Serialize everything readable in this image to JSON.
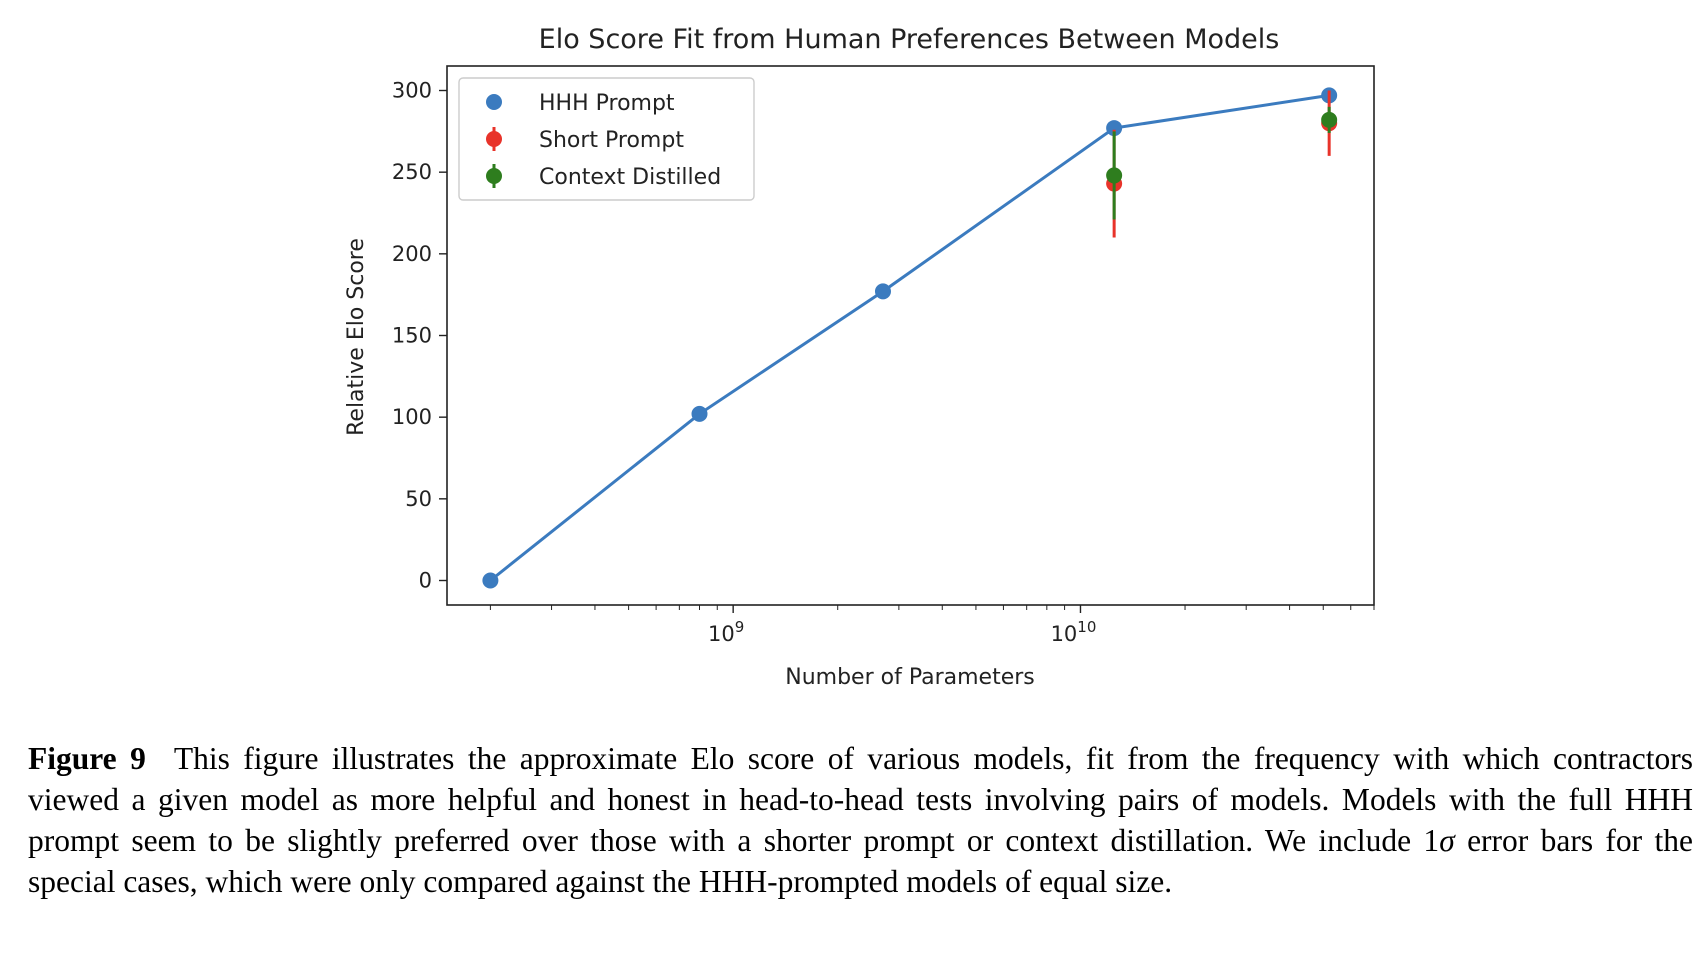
{
  "chart_data": {
    "type": "scatter",
    "title": "Elo Score Fit from Human Preferences Between Models",
    "xlabel": "Number of Parameters",
    "ylabel": "Relative Elo Score",
    "xscale": "log",
    "xlim": [
      150000000,
      70000000000
    ],
    "ylim": [
      -15,
      315
    ],
    "yticks": [
      0,
      50,
      100,
      150,
      200,
      250,
      300
    ],
    "xticks": [
      {
        "value": 1000000000,
        "base": "10",
        "exp": "9"
      },
      {
        "value": 10000000000,
        "base": "10",
        "exp": "10"
      }
    ],
    "grid": false,
    "legend_position": "top-left",
    "series": [
      {
        "name": "HHH Prompt",
        "color": "#3b7bbf",
        "line": true,
        "x": [
          200000000,
          800000000,
          2700000000,
          12500000000,
          52000000000
        ],
        "y": [
          0,
          102,
          177,
          277,
          297
        ]
      },
      {
        "name": "Short Prompt",
        "color": "#e8332a",
        "line": false,
        "x": [
          12500000000,
          52000000000
        ],
        "y": [
          243,
          280
        ],
        "err": [
          33,
          20
        ]
      },
      {
        "name": "Context Distilled",
        "color": "#2e7d1e",
        "line": false,
        "x": [
          12500000000,
          52000000000
        ],
        "y": [
          248,
          282
        ],
        "err": [
          27,
          8
        ]
      }
    ]
  },
  "caption": {
    "label": "Figure 9",
    "text_before_sigma": "This figure illustrates the approximate Elo score of various models, fit from the frequency with which contractors viewed a given model as more helpful and honest in head-to-head tests involving pairs of models. Models with the full HHH prompt seem to be slightly preferred over those with a shorter prompt or context distillation.  We include 1",
    "sigma": "σ",
    "text_after_sigma": " error bars for the special cases, which were only compared against the HHH-prompted models of equal size."
  }
}
